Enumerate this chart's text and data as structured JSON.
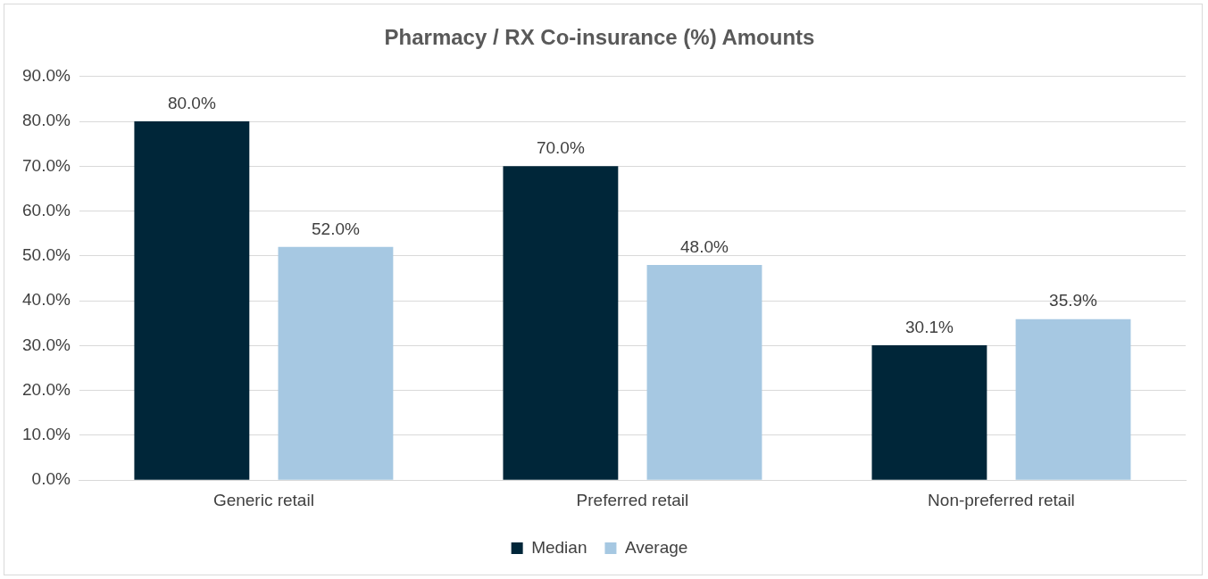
{
  "chart_data": {
    "type": "bar",
    "title": "Pharmacy / RX Co-insurance (%) Amounts",
    "categories": [
      "Generic retail",
      "Preferred retail",
      "Non-preferred retail"
    ],
    "series": [
      {
        "name": "Median",
        "color": "#002639",
        "values": [
          80,
          70,
          30.1
        ],
        "value_labels": [
          "80.0%",
          "70.0%",
          "30.1%"
        ]
      },
      {
        "name": "Average",
        "color": "#a6c8e2",
        "values": [
          52,
          48,
          35.9
        ],
        "value_labels": [
          "52.0%",
          "48.0%",
          "35.9%"
        ]
      }
    ],
    "ylim": [
      0,
      90
    ],
    "yticks": [
      {
        "value": 0,
        "label": "0.0%"
      },
      {
        "value": 10,
        "label": "10.0%"
      },
      {
        "value": 20,
        "label": "20.0%"
      },
      {
        "value": 30,
        "label": "30.0%"
      },
      {
        "value": 40,
        "label": "40.0%"
      },
      {
        "value": 50,
        "label": "50.0%"
      },
      {
        "value": 60,
        "label": "60.0%"
      },
      {
        "value": 70,
        "label": "70.0%"
      },
      {
        "value": 80,
        "label": "80.0%"
      },
      {
        "value": 90,
        "label": "90.0%"
      }
    ],
    "grid": "y",
    "legend": "bottom"
  }
}
